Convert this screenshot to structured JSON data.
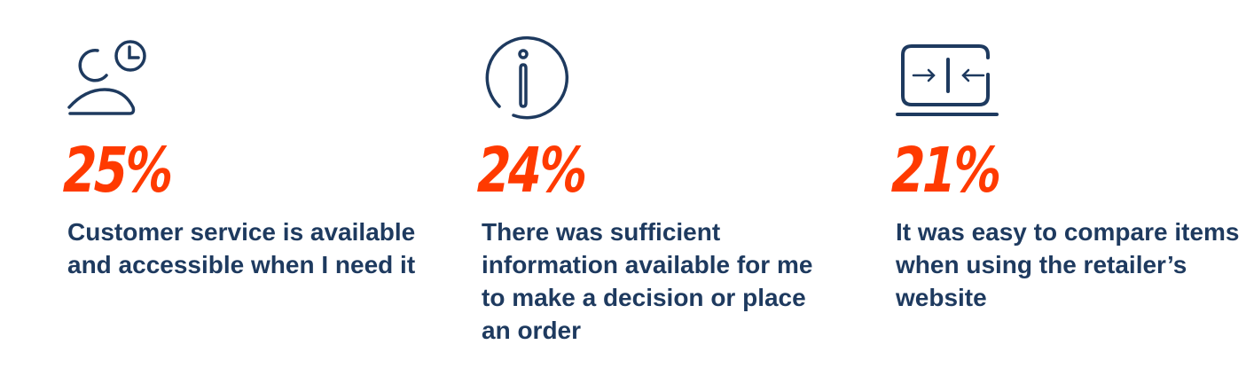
{
  "colors": {
    "navy": "#1e3a5f",
    "accent": "#ff3a00"
  },
  "stats": [
    {
      "icon": "customer-service-clock-icon",
      "value": "25%",
      "text": "Customer service is available and accessible when I need it"
    },
    {
      "icon": "info-icon",
      "value": "24%",
      "text": "There was sufficient information available for me to make a decision or place an order"
    },
    {
      "icon": "laptop-compare-icon",
      "value": "21%",
      "text": "It was easy to compare items when using the retailer’s website"
    }
  ]
}
